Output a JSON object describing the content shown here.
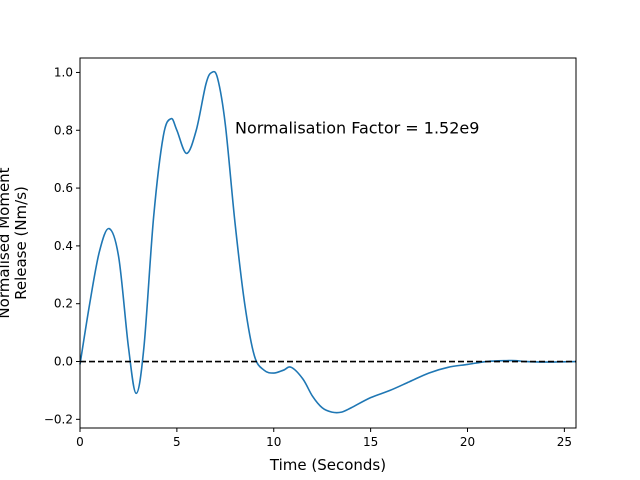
{
  "chart_data": {
    "type": "line",
    "title": "",
    "xlabel": "Time (Seconds)",
    "ylabel_lines": [
      "Normalised Moment",
      "Release (Nm/s)"
    ],
    "xlim": [
      0,
      25.6
    ],
    "ylim": [
      -0.23,
      1.05
    ],
    "xticks": [
      0,
      5,
      10,
      15,
      20,
      25
    ],
    "yticks": [
      -0.2,
      0.0,
      0.2,
      0.4,
      0.6,
      0.8,
      1.0
    ],
    "xtick_labels": [
      "0",
      "5",
      "10",
      "15",
      "20",
      "25"
    ],
    "ytick_labels": [
      "−0.2",
      "0.0",
      "0.2",
      "0.4",
      "0.6",
      "0.8",
      "1.0"
    ],
    "grid": false,
    "annotation": {
      "text": "Normalisation Factor = 1.52e9",
      "x": 8.0,
      "y": 0.81
    },
    "reference_line": {
      "y": 0,
      "style": "dashed",
      "color": "#000000"
    },
    "series": [
      {
        "color": "#1f77b4",
        "x": [
          0,
          0.5,
          1.0,
          1.5,
          2.0,
          2.5,
          2.9,
          3.3,
          3.8,
          4.3,
          4.7,
          5.0,
          5.5,
          6.0,
          6.5,
          6.8,
          7.1,
          7.5,
          8.0,
          8.5,
          9.0,
          9.5,
          10.0,
          10.5,
          10.9,
          11.5,
          12.0,
          12.5,
          13.0,
          13.5,
          14.0,
          15.0,
          16.0,
          17.0,
          18.0,
          19.0,
          20.0,
          21.0,
          22.0,
          22.5,
          23.0,
          24.0,
          25.6
        ],
        "y": [
          -0.01,
          0.2,
          0.38,
          0.46,
          0.36,
          0.05,
          -0.11,
          0.05,
          0.5,
          0.78,
          0.84,
          0.8,
          0.72,
          0.8,
          0.96,
          1.0,
          0.98,
          0.82,
          0.48,
          0.2,
          0.02,
          -0.03,
          -0.04,
          -0.03,
          -0.02,
          -0.06,
          -0.12,
          -0.16,
          -0.175,
          -0.175,
          -0.16,
          -0.125,
          -0.1,
          -0.07,
          -0.04,
          -0.02,
          -0.01,
          0.0,
          0.003,
          0.003,
          0.0,
          -0.002,
          0.0
        ]
      }
    ]
  }
}
